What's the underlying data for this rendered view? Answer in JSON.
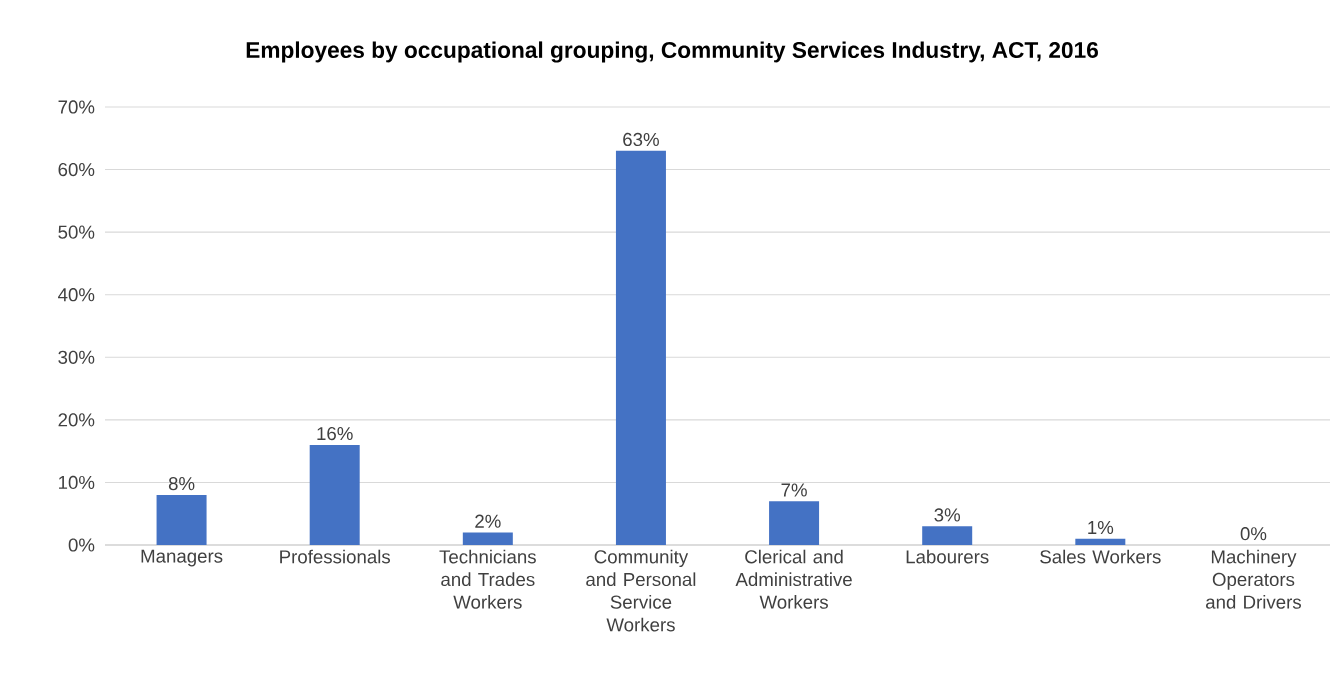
{
  "chart_data": {
    "type": "bar",
    "title": "Employees by occupational grouping, Community Services Industry, ACT, 2016",
    "categories": [
      "Managers",
      "Professionals",
      "Technicians and Trades Workers",
      "Community and Personal Service Workers",
      "Clerical and Administrative Workers",
      "Labourers",
      "Sales Workers",
      "Machinery Operators and Drivers"
    ],
    "values": [
      8,
      16,
      2,
      63,
      7,
      3,
      1,
      0
    ],
    "value_labels": [
      "8%",
      "16%",
      "2%",
      "63%",
      "7%",
      "3%",
      "1%",
      "0%"
    ],
    "color": "#4472c4",
    "ylim": [
      0,
      70
    ],
    "yticks": [
      {
        "value": 0,
        "label": "0%"
      },
      {
        "value": 10,
        "label": "10%"
      },
      {
        "value": 20,
        "label": "20%"
      },
      {
        "value": 30,
        "label": "30%"
      },
      {
        "value": 40,
        "label": "40%"
      },
      {
        "value": 50,
        "label": "50%"
      },
      {
        "value": 60,
        "label": "60%"
      },
      {
        "value": 70,
        "label": "70%"
      }
    ],
    "grid": "y"
  }
}
